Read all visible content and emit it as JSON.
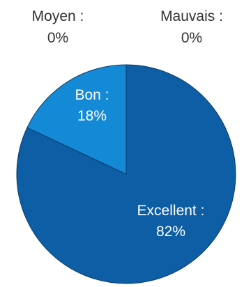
{
  "chart_data": {
    "type": "pie",
    "slices": [
      {
        "label": "Excellent :",
        "value_text": "82%",
        "value": 82,
        "color": "#0e5ea6"
      },
      {
        "label": "Bon :",
        "value_text": "18%",
        "value": 18,
        "color": "#148ad6"
      },
      {
        "label": "Moyen :",
        "value_text": "0%",
        "value": 0,
        "color": "#9fc9ea"
      },
      {
        "label": "Mauvais :",
        "value_text": "0%",
        "value": 0,
        "color": "#d6e6f4"
      }
    ],
    "edge_color": "#0a3b66",
    "inside_text_color": "#ffffff",
    "outside_text_color": "#333333"
  }
}
